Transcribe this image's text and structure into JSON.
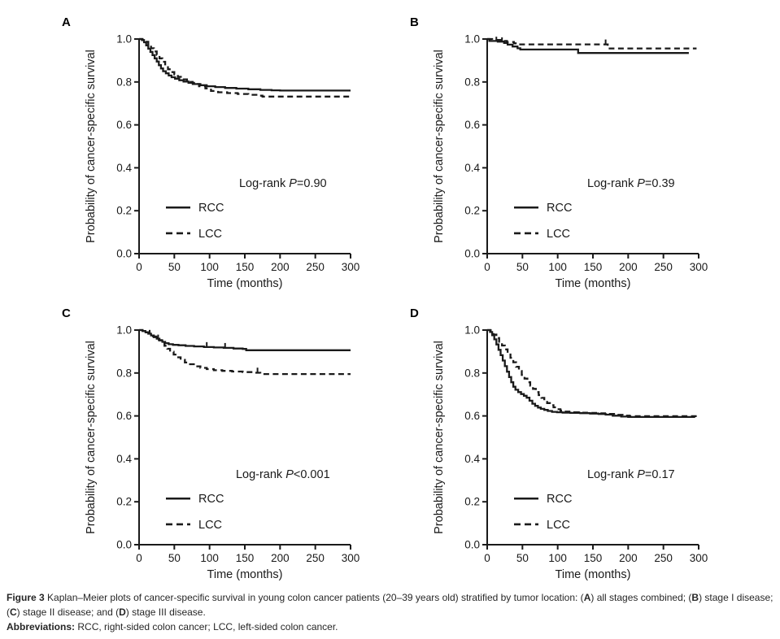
{
  "figure": {
    "caption_segments": [
      {
        "t": "Figure 3 ",
        "b": true
      },
      {
        "t": "Kaplan–Meier plots of cancer-specific survival in young colon cancer patients (20–39 years old) stratified by tumor location: (",
        "b": false
      },
      {
        "t": "A",
        "b": true
      },
      {
        "t": ") all stages combined; (",
        "b": false
      },
      {
        "t": "B",
        "b": true
      },
      {
        "t": ") stage I disease; (",
        "b": false
      },
      {
        "t": "C",
        "b": true
      },
      {
        "t": ") stage II disease; and (",
        "b": false
      },
      {
        "t": "D",
        "b": true
      },
      {
        "t": ") stage III disease.",
        "b": false
      }
    ],
    "abbrev_segments": [
      {
        "t": "Abbreviations: ",
        "b": true
      },
      {
        "t": "RCC, right-sided colon cancer; LCC, left-sided colon cancer.",
        "b": false
      }
    ]
  },
  "colors": {
    "line": "#1a1a1a",
    "text": "#231f20",
    "background": "#ffffff"
  },
  "chart_data": [
    {
      "type": "line",
      "panel": "A",
      "xlabel": "Time (months)",
      "ylabel": "Probability of cancer-specific survival",
      "xlim": [
        0,
        300
      ],
      "ylim": [
        0,
        1
      ],
      "xticks": [
        0,
        50,
        100,
        150,
        200,
        250,
        300
      ],
      "yticks": [
        0.0,
        0.2,
        0.4,
        0.6,
        0.8,
        1.0
      ],
      "grid": false,
      "legend_position": "lower-left",
      "annotation": {
        "pre": "Log-rank ",
        "italic": "P",
        "post": "=0.90"
      },
      "series": [
        {
          "name": "RCC",
          "line": "solid",
          "censors": [],
          "points": [
            [
              0,
              1.0
            ],
            [
              4,
              0.995
            ],
            [
              7,
              0.985
            ],
            [
              10,
              0.97
            ],
            [
              13,
              0.955
            ],
            [
              16,
              0.94
            ],
            [
              19,
              0.925
            ],
            [
              22,
              0.91
            ],
            [
              25,
              0.895
            ],
            [
              28,
              0.878
            ],
            [
              31,
              0.863
            ],
            [
              34,
              0.85
            ],
            [
              38,
              0.84
            ],
            [
              42,
              0.83
            ],
            [
              46,
              0.822
            ],
            [
              51,
              0.815
            ],
            [
              57,
              0.808
            ],
            [
              63,
              0.802
            ],
            [
              70,
              0.796
            ],
            [
              78,
              0.79
            ],
            [
              87,
              0.785
            ],
            [
              96,
              0.78
            ],
            [
              108,
              0.776
            ],
            [
              122,
              0.772
            ],
            [
              138,
              0.769
            ],
            [
              155,
              0.766
            ],
            [
              172,
              0.763
            ],
            [
              188,
              0.761
            ],
            [
              200,
              0.76
            ],
            [
              300,
              0.76
            ]
          ]
        },
        {
          "name": "LCC",
          "line": "dashed",
          "censors": [],
          "points": [
            [
              0,
              1.0
            ],
            [
              5,
              0.996
            ],
            [
              9,
              0.987
            ],
            [
              13,
              0.972
            ],
            [
              17,
              0.957
            ],
            [
              21,
              0.942
            ],
            [
              25,
              0.926
            ],
            [
              29,
              0.91
            ],
            [
              33,
              0.894
            ],
            [
              37,
              0.876
            ],
            [
              41,
              0.859
            ],
            [
              45,
              0.846
            ],
            [
              50,
              0.835
            ],
            [
              55,
              0.824
            ],
            [
              61,
              0.812
            ],
            [
              68,
              0.8
            ],
            [
              76,
              0.79
            ],
            [
              85,
              0.78
            ],
            [
              94,
              0.77
            ],
            [
              102,
              0.758
            ],
            [
              112,
              0.752
            ],
            [
              125,
              0.748
            ],
            [
              140,
              0.744
            ],
            [
              155,
              0.74
            ],
            [
              168,
              0.736
            ],
            [
              175,
              0.732
            ],
            [
              300,
              0.732
            ]
          ]
        }
      ]
    },
    {
      "type": "line",
      "panel": "B",
      "xlabel": "Time (months)",
      "ylabel": "Probability of cancer-specific survival",
      "xlim": [
        0,
        300
      ],
      "ylim": [
        0,
        1
      ],
      "xticks": [
        0,
        50,
        100,
        150,
        200,
        250,
        300
      ],
      "yticks": [
        0.0,
        0.2,
        0.4,
        0.6,
        0.8,
        1.0
      ],
      "grid": false,
      "legend_position": "lower-left",
      "annotation": {
        "pre": "Log-rank ",
        "italic": "P",
        "post": "=0.39"
      },
      "series": [
        {
          "name": "RCC",
          "line": "solid",
          "censors": [
            [
              13,
              0.988
            ],
            [
              21,
              0.985
            ]
          ],
          "points": [
            [
              0,
              1.0
            ],
            [
              3,
              0.991
            ],
            [
              15,
              0.988
            ],
            [
              24,
              0.982
            ],
            [
              29,
              0.974
            ],
            [
              36,
              0.965
            ],
            [
              43,
              0.957
            ],
            [
              47,
              0.951
            ],
            [
              126,
              0.951
            ],
            [
              129,
              0.935
            ],
            [
              286,
              0.935
            ]
          ]
        },
        {
          "name": "LCC",
          "line": "dashed",
          "censors": [
            [
              168,
              0.975
            ]
          ],
          "points": [
            [
              0,
              1.0
            ],
            [
              7,
              0.996
            ],
            [
              19,
              0.991
            ],
            [
              28,
              0.986
            ],
            [
              38,
              0.98
            ],
            [
              45,
              0.975
            ],
            [
              167,
              0.975
            ],
            [
              171,
              0.956
            ],
            [
              297,
              0.956
            ]
          ]
        }
      ]
    },
    {
      "type": "line",
      "panel": "C",
      "xlabel": "Time (months)",
      "ylabel": "Probability of cancer-specific survival",
      "xlim": [
        0,
        300
      ],
      "ylim": [
        0,
        1
      ],
      "xticks": [
        0,
        50,
        100,
        150,
        200,
        250,
        300
      ],
      "yticks": [
        0.0,
        0.2,
        0.4,
        0.6,
        0.8,
        1.0
      ],
      "grid": false,
      "legend_position": "lower-left",
      "annotation": {
        "pre": "Log-rank ",
        "italic": "P",
        "post": "<0.001"
      },
      "series": [
        {
          "name": "RCC",
          "line": "solid",
          "censors": [
            [
              15,
              0.978
            ],
            [
              27,
              0.956
            ],
            [
              96,
              0.921
            ],
            [
              122,
              0.917
            ]
          ],
          "points": [
            [
              0,
              1.0
            ],
            [
              5,
              0.996
            ],
            [
              9,
              0.99
            ],
            [
              13,
              0.983
            ],
            [
              17,
              0.975
            ],
            [
              21,
              0.967
            ],
            [
              25,
              0.96
            ],
            [
              29,
              0.952
            ],
            [
              33,
              0.945
            ],
            [
              37,
              0.939
            ],
            [
              42,
              0.934
            ],
            [
              48,
              0.931
            ],
            [
              56,
              0.929
            ],
            [
              66,
              0.926
            ],
            [
              78,
              0.924
            ],
            [
              92,
              0.921
            ],
            [
              106,
              0.919
            ],
            [
              120,
              0.917
            ],
            [
              134,
              0.914
            ],
            [
              147,
              0.912
            ],
            [
              152,
              0.906
            ],
            [
              300,
              0.906
            ]
          ]
        },
        {
          "name": "LCC",
          "line": "dashed",
          "censors": [
            [
              168,
              0.802
            ]
          ],
          "points": [
            [
              0,
              1.0
            ],
            [
              5,
              0.996
            ],
            [
              10,
              0.989
            ],
            [
              15,
              0.979
            ],
            [
              20,
              0.97
            ],
            [
              24,
              0.962
            ],
            [
              28,
              0.953
            ],
            [
              32,
              0.942
            ],
            [
              36,
              0.927
            ],
            [
              40,
              0.913
            ],
            [
              44,
              0.899
            ],
            [
              49,
              0.886
            ],
            [
              54,
              0.873
            ],
            [
              59,
              0.861
            ],
            [
              65,
              0.849
            ],
            [
              71,
              0.841
            ],
            [
              79,
              0.831
            ],
            [
              87,
              0.824
            ],
            [
              96,
              0.818
            ],
            [
              106,
              0.813
            ],
            [
              118,
              0.81
            ],
            [
              132,
              0.807
            ],
            [
              147,
              0.804
            ],
            [
              162,
              0.801
            ],
            [
              172,
              0.795
            ],
            [
              300,
              0.795
            ]
          ]
        }
      ]
    },
    {
      "type": "line",
      "panel": "D",
      "xlabel": "Time (months)",
      "ylabel": "Probability of cancer-specific survival",
      "xlim": [
        0,
        300
      ],
      "ylim": [
        0,
        1
      ],
      "xticks": [
        0,
        50,
        100,
        150,
        200,
        250,
        300
      ],
      "yticks": [
        0.0,
        0.2,
        0.4,
        0.6,
        0.8,
        1.0
      ],
      "grid": false,
      "legend_position": "lower-left",
      "annotation": {
        "pre": "Log-rank ",
        "italic": "P",
        "post": "=0.17"
      },
      "series": [
        {
          "name": "RCC",
          "line": "solid",
          "censors": [],
          "points": [
            [
              0,
              1.0
            ],
            [
              4,
              0.991
            ],
            [
              7,
              0.976
            ],
            [
              10,
              0.957
            ],
            [
              13,
              0.933
            ],
            [
              16,
              0.908
            ],
            [
              19,
              0.883
            ],
            [
              22,
              0.858
            ],
            [
              25,
              0.832
            ],
            [
              28,
              0.806
            ],
            [
              31,
              0.781
            ],
            [
              34,
              0.757
            ],
            [
              37,
              0.736
            ],
            [
              40,
              0.722
            ],
            [
              44,
              0.711
            ],
            [
              48,
              0.702
            ],
            [
              52,
              0.694
            ],
            [
              56,
              0.685
            ],
            [
              60,
              0.671
            ],
            [
              64,
              0.657
            ],
            [
              68,
              0.647
            ],
            [
              72,
              0.639
            ],
            [
              76,
              0.633
            ],
            [
              81,
              0.628
            ],
            [
              86,
              0.623
            ],
            [
              92,
              0.619
            ],
            [
              99,
              0.617
            ],
            [
              107,
              0.615
            ],
            [
              118,
              0.614
            ],
            [
              132,
              0.613
            ],
            [
              146,
              0.611
            ],
            [
              158,
              0.609
            ],
            [
              168,
              0.606
            ],
            [
              178,
              0.601
            ],
            [
              190,
              0.597
            ],
            [
              200,
              0.595
            ],
            [
              295,
              0.595
            ]
          ]
        },
        {
          "name": "LCC",
          "line": "dashed",
          "censors": [],
          "points": [
            [
              0,
              1.0
            ],
            [
              5,
              0.991
            ],
            [
              9,
              0.979
            ],
            [
              13,
              0.963
            ],
            [
              17,
              0.946
            ],
            [
              21,
              0.928
            ],
            [
              25,
              0.91
            ],
            [
              29,
              0.891
            ],
            [
              33,
              0.871
            ],
            [
              37,
              0.85
            ],
            [
              41,
              0.829
            ],
            [
              45,
              0.809
            ],
            [
              49,
              0.791
            ],
            [
              53,
              0.774
            ],
            [
              57,
              0.757
            ],
            [
              61,
              0.741
            ],
            [
              65,
              0.726
            ],
            [
              69,
              0.711
            ],
            [
              73,
              0.697
            ],
            [
              77,
              0.684
            ],
            [
              81,
              0.671
            ],
            [
              85,
              0.66
            ],
            [
              89,
              0.65
            ],
            [
              94,
              0.64
            ],
            [
              99,
              0.631
            ],
            [
              104,
              0.625
            ],
            [
              110,
              0.62
            ],
            [
              118,
              0.617
            ],
            [
              130,
              0.615
            ],
            [
              144,
              0.614
            ],
            [
              158,
              0.612
            ],
            [
              170,
              0.609
            ],
            [
              180,
              0.605
            ],
            [
              192,
              0.601
            ],
            [
              202,
              0.599
            ],
            [
              300,
              0.599
            ]
          ]
        }
      ]
    }
  ]
}
